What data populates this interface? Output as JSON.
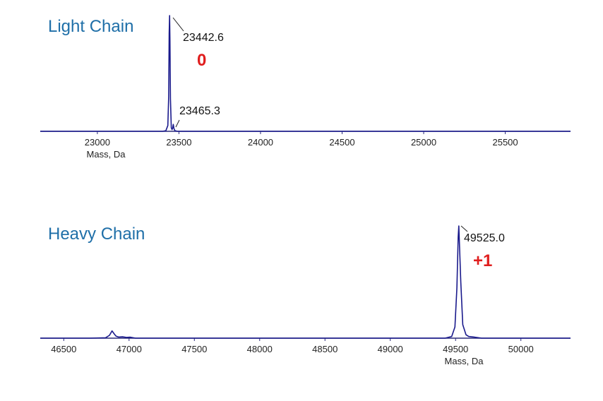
{
  "colors": {
    "title": "#1f6fa8",
    "trace": "#1a1a8c",
    "axis": "#2a2a7a",
    "mod_label": "#e01e1e"
  },
  "chart_data": [
    {
      "type": "line",
      "title": "Light Chain",
      "xlabel": "Mass, Da",
      "xlim": [
        22650,
        25900
      ],
      "ylim": [
        0,
        100
      ],
      "x_ticks": [
        23000,
        23500,
        24000,
        24500,
        25000,
        25500
      ],
      "peaks": [
        {
          "label": "23442.6",
          "annotation": "0"
        },
        {
          "label": "23465.3"
        }
      ],
      "series": [
        {
          "x": [
            22650,
            23400,
            23420,
            23432,
            23437,
            23440,
            23442.6,
            23445,
            23448,
            23453,
            23458,
            23462,
            23465.3,
            23469,
            23475,
            23490,
            25900
          ],
          "y": [
            0,
            0,
            0.5,
            5,
            30,
            85,
            100,
            78,
            28,
            3,
            1.5,
            3,
            6,
            2.5,
            0.6,
            0,
            0
          ]
        }
      ]
    },
    {
      "type": "line",
      "title": "Heavy Chain",
      "xlabel": "Mass, Da",
      "xlim": [
        46320,
        50380
      ],
      "ylim": [
        0,
        100
      ],
      "x_ticks": [
        46500,
        47000,
        47500,
        48000,
        48500,
        49000,
        49500,
        50000
      ],
      "peaks": [
        {
          "label": "49525.0",
          "annotation": "+1"
        }
      ],
      "series": [
        {
          "x": [
            46320,
            46700,
            46820,
            46850,
            46870,
            46885,
            46900,
            46920,
            46950,
            46980,
            47010,
            47050,
            49420,
            49470,
            49495,
            49510,
            49520,
            49525,
            49530,
            49540,
            49555,
            49580,
            49600,
            49640,
            49700,
            50380
          ],
          "y": [
            0,
            0,
            0.4,
            2.5,
            6.5,
            4,
            1.8,
            1,
            1.2,
            0.7,
            0.9,
            0,
            0,
            1.5,
            10,
            45,
            90,
            100,
            82,
            50,
            12,
            3,
            1.5,
            1,
            0,
            0
          ]
        }
      ]
    }
  ]
}
